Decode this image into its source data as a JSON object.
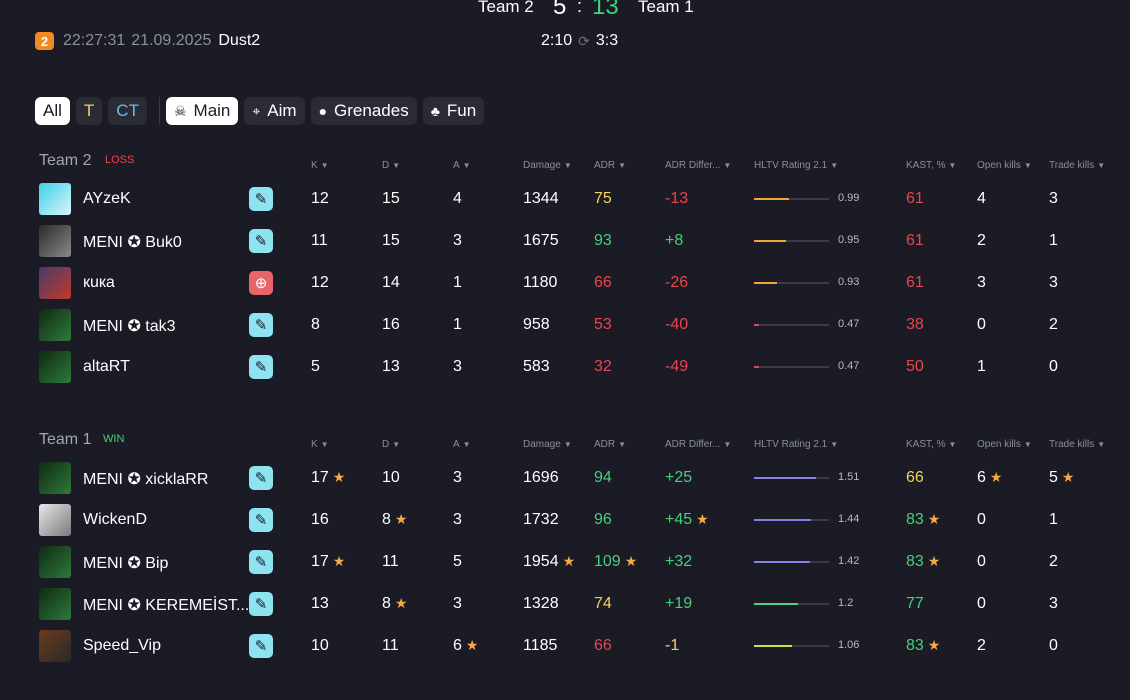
{
  "header": {
    "team_left": "Team 2",
    "score_left": "5",
    "separator": ":",
    "score_right": "13",
    "team_right": "Team 1",
    "logo_letter": "2",
    "time": "22:27:31",
    "date": "21.09.2025",
    "map": "Dust2",
    "round_time": "2:10",
    "round_score": "3:3"
  },
  "filters": {
    "side": [
      "All",
      "T",
      "CT"
    ],
    "categories": [
      "Main",
      "Aim",
      "Grenades",
      "Fun"
    ]
  },
  "columns": [
    "K",
    "D",
    "A",
    "Damage",
    "ADR",
    "ADR Differ...",
    "HLTV Rating 2.1",
    "KAST, %",
    "Open kills",
    "Trade kills"
  ],
  "teams": [
    {
      "name": "Team 2",
      "result": "LOSS",
      "players": [
        {
          "name": "AYzeK",
          "role_icon": "pencil-icon",
          "k": "12",
          "d": "15",
          "a": "4",
          "damage": "1344",
          "adr": "75",
          "adr_diff": "-13",
          "rating": "0.99",
          "rating_fraction": 0.46,
          "kast": "61",
          "open": "4",
          "trade": "3"
        },
        {
          "name": "MENI ✪ Buk0",
          "role_icon": "pencil-icon",
          "k": "11",
          "d": "15",
          "a": "3",
          "damage": "1675",
          "adr": "93",
          "adr_diff": "+8",
          "rating": "0.95",
          "rating_fraction": 0.43,
          "kast": "61",
          "open": "2",
          "trade": "1"
        },
        {
          "name": "кuкa",
          "role_icon": "crosshair-icon",
          "k": "12",
          "d": "14",
          "a": "1",
          "damage": "1180",
          "adr": "66",
          "adr_diff": "-26",
          "rating": "0.93",
          "rating_fraction": 0.31,
          "kast": "61",
          "open": "3",
          "trade": "3"
        },
        {
          "name": "MENI ✪ tak3",
          "role_icon": "pencil-icon",
          "k": "8",
          "d": "16",
          "a": "1",
          "damage": "958",
          "adr": "53",
          "adr_diff": "-40",
          "rating": "0.47",
          "rating_fraction": 0.07,
          "kast": "38",
          "open": "0",
          "trade": "2"
        },
        {
          "name": "altaRT",
          "role_icon": "pencil-icon",
          "k": "5",
          "d": "13",
          "a": "3",
          "damage": "583",
          "adr": "32",
          "adr_diff": "-49",
          "rating": "0.47",
          "rating_fraction": 0.07,
          "kast": "50",
          "open": "1",
          "trade": "0"
        }
      ]
    },
    {
      "name": "Team 1",
      "result": "WIN",
      "players": [
        {
          "name": "MENI ✪ xicklaRR",
          "role_icon": "pencil-icon",
          "k": "17",
          "k_star": true,
          "d": "10",
          "a": "3",
          "damage": "1696",
          "adr": "94",
          "adr_diff": "+25",
          "rating": "1.51",
          "rating_fraction": 0.82,
          "kast": "66",
          "open": "6",
          "open_star": true,
          "trade": "5",
          "trade_star": true
        },
        {
          "name": "WickenD",
          "role_icon": "pencil-icon",
          "k": "16",
          "d": "8",
          "d_star": true,
          "a": "3",
          "damage": "1732",
          "adr": "96",
          "adr_diff": "+45",
          "adr_diff_star": true,
          "rating": "1.44",
          "rating_fraction": 0.76,
          "kast": "83",
          "kast_star": true,
          "open": "0",
          "trade": "1"
        },
        {
          "name": "MENI ✪ Bip",
          "role_icon": "pencil-icon",
          "k": "17",
          "k_star": true,
          "d": "11",
          "a": "5",
          "damage": "1954",
          "damage_star": true,
          "adr": "109",
          "adr_star": true,
          "adr_diff": "+32",
          "rating": "1.42",
          "rating_fraction": 0.75,
          "kast": "83",
          "kast_star": true,
          "open": "0",
          "trade": "2"
        },
        {
          "name": "MENI ✪ KEREMEİST...",
          "role_icon": "pencil-icon",
          "k": "13",
          "d": "8",
          "d_star": true,
          "a": "3",
          "damage": "1328",
          "adr": "74",
          "adr_diff": "+19",
          "rating": "1.2",
          "rating_fraction": 0.59,
          "kast": "77",
          "open": "0",
          "trade": "3"
        },
        {
          "name": "Speed_Vip",
          "role_icon": "pencil-icon",
          "k": "10",
          "d": "11",
          "a": "6",
          "a_star": true,
          "damage": "1185",
          "adr": "66",
          "adr_diff": "-1",
          "rating": "1.06",
          "rating_fraction": 0.5,
          "kast": "83",
          "kast_star": true,
          "open": "2",
          "trade": "0"
        }
      ]
    }
  ],
  "colors": {
    "loss": "#e8464e",
    "win": "#43d17a",
    "rating_low": "#f2a33a",
    "rating_bad": "#e8464e",
    "rating_good": "#8b7fe8",
    "rating_ok": "#4fd08a",
    "rating_mid": "#c9e04a"
  }
}
